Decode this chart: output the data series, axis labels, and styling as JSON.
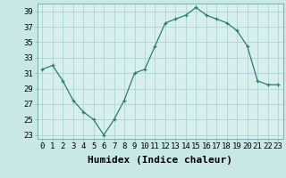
{
  "xlabel": "Humidex (Indice chaleur)",
  "x": [
    0,
    1,
    2,
    3,
    4,
    5,
    6,
    7,
    8,
    9,
    10,
    11,
    12,
    13,
    14,
    15,
    16,
    17,
    18,
    19,
    20,
    21,
    22,
    23
  ],
  "y": [
    31.5,
    32,
    30,
    27.5,
    26,
    25,
    23,
    25,
    27.5,
    31,
    31.5,
    34.5,
    37.5,
    38,
    38.5,
    39.5,
    38.5,
    38,
    37.5,
    36.5,
    34.5,
    30,
    29.5,
    29.5
  ],
  "ylim_min": 22.5,
  "ylim_max": 40.0,
  "yticks": [
    23,
    25,
    27,
    29,
    31,
    33,
    35,
    37,
    39
  ],
  "xticks": [
    0,
    1,
    2,
    3,
    4,
    5,
    6,
    7,
    8,
    9,
    10,
    11,
    12,
    13,
    14,
    15,
    16,
    17,
    18,
    19,
    20,
    21,
    22,
    23
  ],
  "line_color": "#2e7d6e",
  "marker": "+",
  "bg_color": "#c8e8e5",
  "grid_color": "#aed4d0",
  "axis_bg": "#d8f0ed",
  "tick_fontsize": 6.5,
  "label_fontsize": 8,
  "marker_size": 3.5,
  "line_width": 0.9
}
